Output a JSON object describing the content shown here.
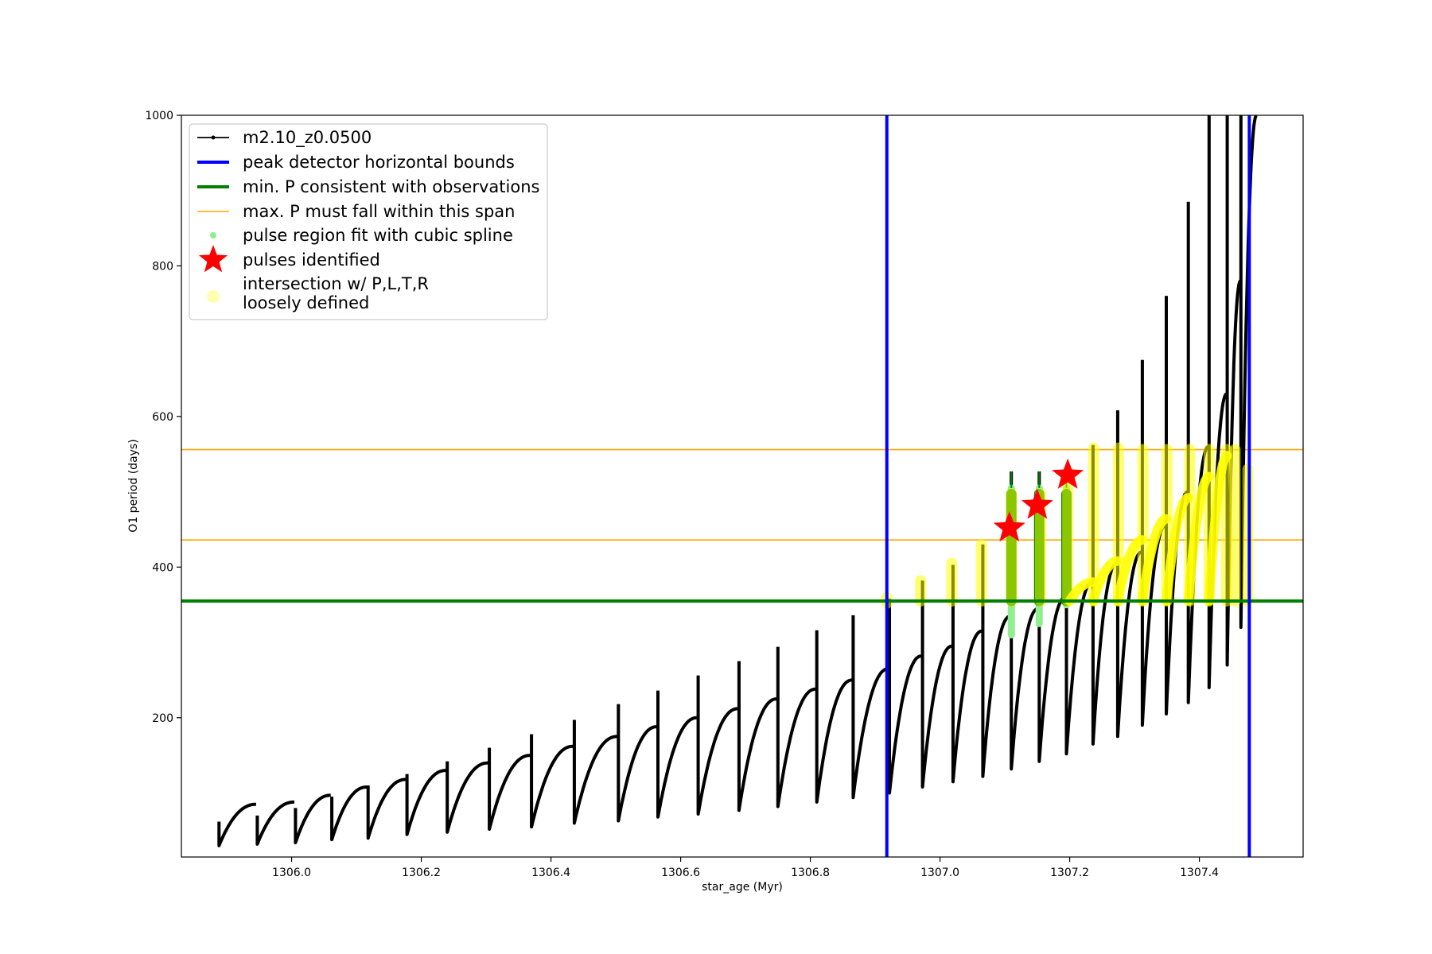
{
  "chart_data": {
    "type": "line",
    "title": "",
    "xlabel": "star_age (Myr)",
    "ylabel": "O1 period (days)",
    "xlim": [
      1305.83,
      1307.56
    ],
    "ylim": [
      15,
      1000
    ],
    "x_ticks": [
      {
        "value": 1306.0,
        "label": "1306.0"
      },
      {
        "value": 1306.2,
        "label": "1306.2"
      },
      {
        "value": 1306.4,
        "label": "1306.4"
      },
      {
        "value": 1306.6,
        "label": "1306.6"
      },
      {
        "value": 1306.8,
        "label": "1306.8"
      },
      {
        "value": 1307.0,
        "label": "1307.0"
      },
      {
        "value": 1307.2,
        "label": "1307.2"
      },
      {
        "value": 1307.4,
        "label": "1307.4"
      }
    ],
    "y_ticks": [
      {
        "value": 200,
        "label": "200"
      },
      {
        "value": 400,
        "label": "400"
      },
      {
        "value": 600,
        "label": "600"
      },
      {
        "value": 800,
        "label": "800"
      },
      {
        "value": 1000,
        "label": "1000"
      }
    ],
    "grid": false,
    "legend_position": "top-left",
    "legend": [
      {
        "label": "m2.10_z0.0500",
        "style": "line-marker",
        "color": "#000000"
      },
      {
        "label": "peak detector horizontal bounds",
        "style": "thick-line",
        "color": "#0000ff"
      },
      {
        "label": "min. P consistent with observations",
        "style": "thick-line",
        "color": "#008000"
      },
      {
        "label": "max. P must fall within this span",
        "style": "thin-line",
        "color": "#ffa500"
      },
      {
        "label": "pulse region fit with cubic spline",
        "style": "dot",
        "color": "#90ee90"
      },
      {
        "label": "pulses identified",
        "style": "star",
        "color": "#ff0000"
      },
      {
        "label_lines": [
          "intersection w/ P,L,T,R",
          "loosely defined"
        ],
        "style": "circle",
        "color": "#ffffb0"
      }
    ],
    "series_name": "m2.10_z0.0500",
    "peak_detector_bounds_x": [
      1306.918,
      1307.477
    ],
    "min_period": 355,
    "max_period_span": [
      436,
      556
    ],
    "pulse_cycles": [
      {
        "start": 1305.888,
        "start_p": 30,
        "end_p": 85,
        "spike_p": 62
      },
      {
        "start": 1305.947,
        "start_p": 32,
        "end_p": 88,
        "spike_p": 70
      },
      {
        "start": 1306.006,
        "start_p": 34,
        "end_p": 97,
        "spike_p": 80
      },
      {
        "start": 1306.062,
        "start_p": 38,
        "end_p": 108,
        "spike_p": 95
      },
      {
        "start": 1306.118,
        "start_p": 40,
        "end_p": 118,
        "spike_p": 110
      },
      {
        "start": 1306.178,
        "start_p": 45,
        "end_p": 130,
        "spike_p": 125
      },
      {
        "start": 1306.24,
        "start_p": 48,
        "end_p": 140,
        "spike_p": 142
      },
      {
        "start": 1306.305,
        "start_p": 52,
        "end_p": 150,
        "spike_p": 160
      },
      {
        "start": 1306.37,
        "start_p": 55,
        "end_p": 162,
        "spike_p": 178
      },
      {
        "start": 1306.436,
        "start_p": 60,
        "end_p": 175,
        "spike_p": 197
      },
      {
        "start": 1306.504,
        "start_p": 63,
        "end_p": 188,
        "spike_p": 218
      },
      {
        "start": 1306.565,
        "start_p": 68,
        "end_p": 200,
        "spike_p": 236
      },
      {
        "start": 1306.627,
        "start_p": 72,
        "end_p": 212,
        "spike_p": 256
      },
      {
        "start": 1306.69,
        "start_p": 77,
        "end_p": 225,
        "spike_p": 275
      },
      {
        "start": 1306.75,
        "start_p": 82,
        "end_p": 238,
        "spike_p": 294
      },
      {
        "start": 1306.81,
        "start_p": 88,
        "end_p": 250,
        "spike_p": 316
      },
      {
        "start": 1306.866,
        "start_p": 94,
        "end_p": 265,
        "spike_p": 336
      },
      {
        "start": 1306.922,
        "start_p": 100,
        "end_p": 282,
        "spike_p": 358
      },
      {
        "start": 1306.973,
        "start_p": 108,
        "end_p": 295,
        "spike_p": 382
      },
      {
        "start": 1307.02,
        "start_p": 115,
        "end_p": 315,
        "spike_p": 403
      },
      {
        "start": 1307.066,
        "start_p": 122,
        "end_p": 335,
        "spike_p": 430
      },
      {
        "start": 1307.11,
        "start_p": 132,
        "end_p": 345,
        "spike_p": 527
      },
      {
        "start": 1307.153,
        "start_p": 142,
        "end_p": 360,
        "spike_p": 527
      },
      {
        "start": 1307.195,
        "start_p": 152,
        "end_p": 380,
        "spike_p": 500
      },
      {
        "start": 1307.236,
        "start_p": 165,
        "end_p": 405,
        "spike_p": 562
      },
      {
        "start": 1307.274,
        "start_p": 175,
        "end_p": 420,
        "spike_p": 608
      },
      {
        "start": 1307.312,
        "start_p": 190,
        "end_p": 455,
        "spike_p": 675
      },
      {
        "start": 1307.349,
        "start_p": 205,
        "end_p": 500,
        "spike_p": 760
      },
      {
        "start": 1307.383,
        "start_p": 220,
        "end_p": 560,
        "spike_p": 885
      },
      {
        "start": 1307.415,
        "start_p": 240,
        "end_p": 630,
        "spike_p": 1000
      },
      {
        "start": 1307.443,
        "start_p": 270,
        "end_p": 780,
        "spike_p": 1000
      },
      {
        "start": 1307.464,
        "start_p": 320,
        "end_p": 1000,
        "spike_p": 1000
      }
    ],
    "spline_fit_regions": [
      {
        "x": 1307.11,
        "low": 310,
        "high": 505
      },
      {
        "x": 1307.153,
        "low": 325,
        "high": 505
      },
      {
        "x": 1307.195,
        "low": 350,
        "high": 505
      }
    ],
    "pulses_identified": [
      {
        "x": 1307.107,
        "p": 452
      },
      {
        "x": 1307.15,
        "p": 482
      },
      {
        "x": 1307.197,
        "p": 522
      }
    ],
    "intersection_marks": [
      {
        "x": 1306.918,
        "low": 352,
        "high": 360
      },
      {
        "x": 1306.97,
        "low": 355,
        "high": 382
      },
      {
        "x": 1307.018,
        "low": 355,
        "high": 405
      },
      {
        "x": 1307.064,
        "low": 355,
        "high": 430
      },
      {
        "x": 1307.11,
        "low": 355,
        "high": 497
      },
      {
        "x": 1307.155,
        "low": 355,
        "high": 497
      },
      {
        "x": 1307.197,
        "low": 355,
        "high": 525
      },
      {
        "x": 1307.237,
        "low": 355,
        "high": 558
      },
      {
        "x": 1307.275,
        "low": 355,
        "high": 558
      },
      {
        "x": 1307.313,
        "low": 355,
        "high": 556
      },
      {
        "x": 1307.35,
        "low": 355,
        "high": 556
      },
      {
        "x": 1307.385,
        "low": 355,
        "high": 556
      },
      {
        "x": 1307.415,
        "low": 355,
        "high": 556
      },
      {
        "x": 1307.442,
        "low": 355,
        "high": 556
      },
      {
        "x": 1307.455,
        "low": 355,
        "high": 556
      },
      {
        "x": 1307.475,
        "low": 355,
        "high": 530
      }
    ],
    "yellow_curve_cycles": [
      {
        "start": 1307.2,
        "end": 1307.236
      },
      {
        "start": 1307.236,
        "end": 1307.274
      },
      {
        "start": 1307.274,
        "end": 1307.312
      },
      {
        "start": 1307.312,
        "end": 1307.349
      },
      {
        "start": 1307.349,
        "end": 1307.383
      },
      {
        "start": 1307.383,
        "end": 1307.415
      },
      {
        "start": 1307.415,
        "end": 1307.443
      }
    ]
  }
}
